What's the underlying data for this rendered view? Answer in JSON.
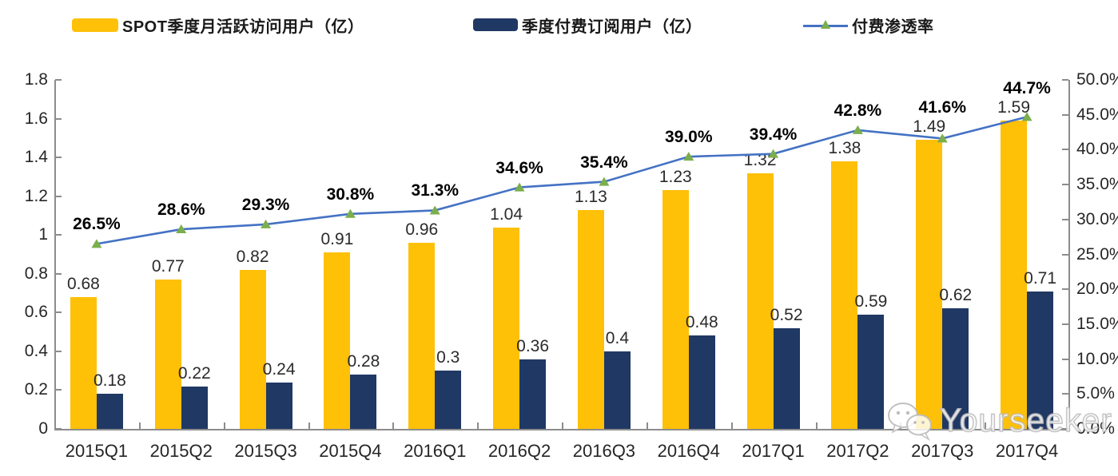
{
  "legend": {
    "items": [
      {
        "label": "SPOT季度月活跃访问用户（亿）",
        "type": "bar",
        "color": "#FFC008"
      },
      {
        "label": "季度付费订阅用户（亿）",
        "type": "bar",
        "color": "#203864"
      },
      {
        "label": "付费渗透率",
        "type": "line",
        "color": "#4472C4",
        "marker_color": "#7BAE4D"
      }
    ]
  },
  "chart_data": {
    "type": "bar",
    "subtype": "grouped-bars-with-line-overlay",
    "title": "",
    "xlabel": "",
    "ylabel_left": "",
    "ylabel_right": "",
    "categories": [
      "2015Q1",
      "2015Q2",
      "2015Q3",
      "2015Q4",
      "2016Q1",
      "2016Q2",
      "2016Q3",
      "2016Q4",
      "2017Q1",
      "2017Q2",
      "2017Q3",
      "2017Q4"
    ],
    "series": [
      {
        "name": "SPOT季度月活跃访问用户（亿）",
        "type": "bar",
        "axis": "left",
        "color": "#FFC008",
        "values": [
          0.68,
          0.77,
          0.82,
          0.91,
          0.96,
          1.04,
          1.13,
          1.23,
          1.32,
          1.38,
          1.49,
          1.59
        ],
        "labels": [
          "0.68",
          "0.77",
          "0.82",
          "0.91",
          "0.96",
          "1.04",
          "1.13",
          "1.23",
          "1.32",
          "1.38",
          "1.49",
          "1.59"
        ]
      },
      {
        "name": "季度付费订阅用户（亿）",
        "type": "bar",
        "axis": "left",
        "color": "#203864",
        "values": [
          0.18,
          0.22,
          0.24,
          0.28,
          0.3,
          0.36,
          0.4,
          0.48,
          0.52,
          0.59,
          0.62,
          0.71
        ],
        "labels": [
          "0.18",
          "0.22",
          "0.24",
          "0.28",
          "0.3",
          "0.36",
          "0.4",
          "0.48",
          "0.52",
          "0.59",
          "0.62",
          "0.71"
        ]
      },
      {
        "name": "付费渗透率",
        "type": "line",
        "axis": "right",
        "color": "#4472C4",
        "marker": "triangle",
        "marker_color": "#7BAE4D",
        "values": [
          26.5,
          28.6,
          29.3,
          30.8,
          31.3,
          34.6,
          35.4,
          39.0,
          39.4,
          42.8,
          41.6,
          44.7
        ],
        "labels": [
          "26.5%",
          "28.6%",
          "29.3%",
          "30.8%",
          "31.3%",
          "34.6%",
          "35.4%",
          "39.0%",
          "39.4%",
          "42.8%",
          "41.6%",
          "44.7%"
        ]
      }
    ],
    "left_axis": {
      "min": 0,
      "max": 1.8,
      "tick_labels": [
        "0",
        "0.2",
        "0.4",
        "0.6",
        "0.8",
        "1",
        "1.2",
        "1.4",
        "1.6",
        "1.8"
      ]
    },
    "right_axis": {
      "min": 0,
      "max": 50,
      "tick_labels": [
        "0.0%",
        "5.0%",
        "10.0%",
        "15.0%",
        "20.0%",
        "25.0%",
        "30.0%",
        "35.0%",
        "40.0%",
        "45.0%",
        "50.0%"
      ]
    },
    "grid": false,
    "legend_position": "top",
    "colors": {
      "axis": "#8c8c8c",
      "bar1": "#FFC008",
      "bar2": "#203864",
      "line": "#4472C4",
      "marker": "#7BAE4D",
      "label": "#262626"
    }
  },
  "watermark": {
    "text": "Yourseeker",
    "icon": "wechat-icon"
  }
}
